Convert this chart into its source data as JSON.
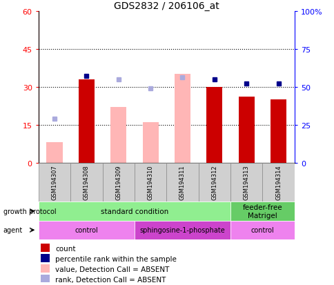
{
  "title": "GDS2832 / 206106_at",
  "samples": [
    "GSM194307",
    "GSM194308",
    "GSM194309",
    "GSM194310",
    "GSM194311",
    "GSM194312",
    "GSM194313",
    "GSM194314"
  ],
  "count_values": [
    null,
    33,
    null,
    null,
    null,
    30,
    26,
    25
  ],
  "count_absent": [
    8,
    null,
    22,
    16,
    35,
    null,
    null,
    null
  ],
  "percentile_rank": [
    null,
    57,
    null,
    null,
    null,
    55,
    52,
    52
  ],
  "percentile_absent": [
    29,
    null,
    55,
    49,
    56,
    null,
    null,
    null
  ],
  "ylim_left": [
    0,
    60
  ],
  "ylim_right": [
    0,
    100
  ],
  "yticks_left": [
    0,
    15,
    30,
    45,
    60
  ],
  "yticks_right": [
    0,
    25,
    50,
    75,
    100
  ],
  "ytick_labels_left": [
    "0",
    "15",
    "30",
    "45",
    "60"
  ],
  "ytick_labels_right": [
    "0",
    "25",
    "50",
    "75",
    "100%"
  ],
  "growth_protocol_groups": [
    {
      "label": "standard condition",
      "start": 0,
      "end": 6,
      "color": "#90ee90"
    },
    {
      "label": "feeder-free\nMatrigel",
      "start": 6,
      "end": 8,
      "color": "#66cc66"
    }
  ],
  "agent_groups": [
    {
      "label": "control",
      "start": 0,
      "end": 3,
      "color": "#ee82ee"
    },
    {
      "label": "sphingosine-1-phosphate",
      "start": 3,
      "end": 6,
      "color": "#cc44cc"
    },
    {
      "label": "control",
      "start": 6,
      "end": 8,
      "color": "#ee82ee"
    }
  ],
  "color_count": "#cc0000",
  "color_count_absent": "#ffb6b6",
  "color_rank": "#00008b",
  "color_rank_absent": "#aaaadd",
  "bar_width": 0.5,
  "legend_items": [
    {
      "label": "count",
      "color": "#cc0000"
    },
    {
      "label": "percentile rank within the sample",
      "color": "#00008b"
    },
    {
      "label": "value, Detection Call = ABSENT",
      "color": "#ffb6b6"
    },
    {
      "label": "rank, Detection Call = ABSENT",
      "color": "#aaaadd"
    }
  ]
}
